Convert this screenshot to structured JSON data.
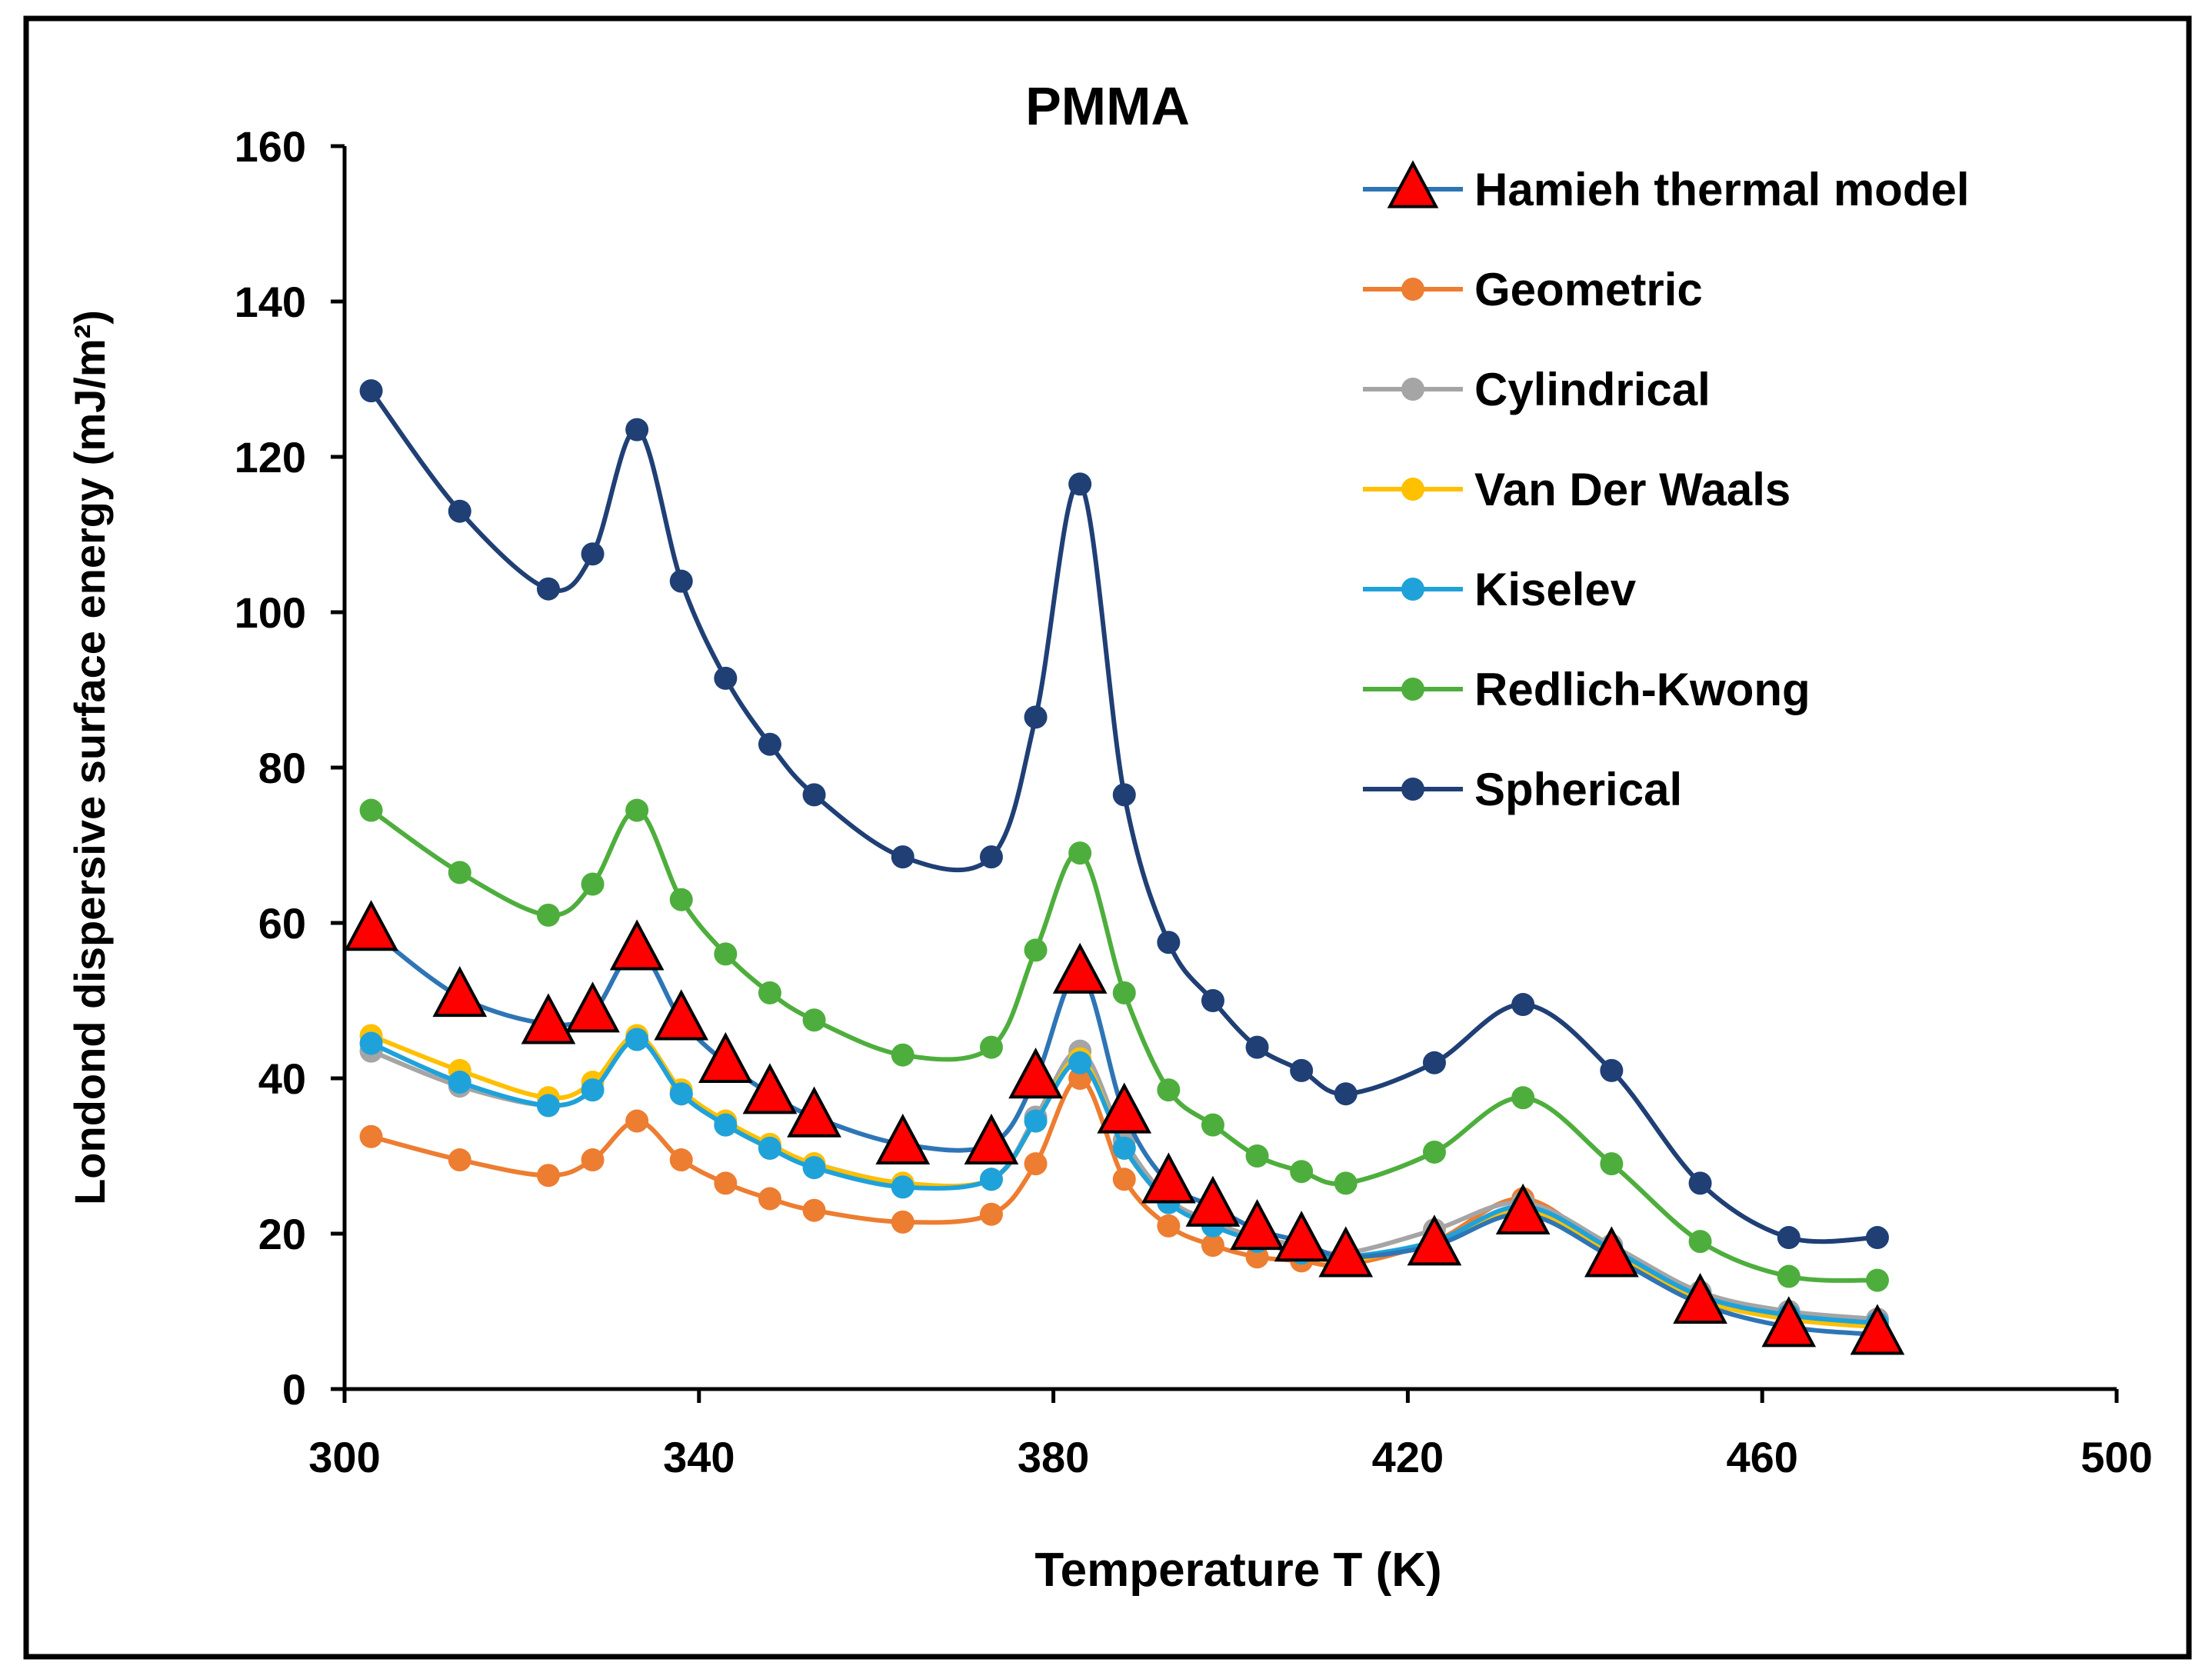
{
  "chart_data": {
    "type": "line",
    "title": "PMMA",
    "xlabel": "Temperature T (K)",
    "ylabel": "Londond dispersive surface energy (mJ/m²)",
    "xlim": [
      300,
      500
    ],
    "ylim": [
      0,
      160
    ],
    "xticks": [
      300,
      340,
      380,
      420,
      460,
      500
    ],
    "yticks": [
      0,
      20,
      40,
      60,
      80,
      100,
      120,
      140,
      160
    ],
    "grid": false,
    "legend_position": "top-right",
    "series": [
      {
        "name": "Hamieh thermal model",
        "color": "#2E75B6",
        "marker": "triangle",
        "marker_color": "#FF0000",
        "x": [
          303,
          313,
          323,
          328,
          333,
          338,
          343,
          348,
          353,
          363,
          373,
          378,
          383,
          388,
          393,
          398,
          403,
          408,
          413,
          423,
          433,
          443,
          453,
          463,
          473
        ],
        "y": [
          59,
          50.5,
          47,
          48.5,
          56.5,
          47.5,
          42,
          38,
          35,
          31.5,
          31.5,
          40,
          53.5,
          35.5,
          26.5,
          23.5,
          20.5,
          19,
          17,
          18.5,
          22.5,
          17,
          11,
          8,
          7
        ]
      },
      {
        "name": "Geometric",
        "color": "#ED7D31",
        "marker": "circle",
        "x": [
          303,
          313,
          323,
          328,
          333,
          338,
          343,
          348,
          353,
          363,
          373,
          378,
          383,
          388,
          393,
          398,
          403,
          408,
          413,
          423,
          433,
          443,
          453,
          463,
          473
        ],
        "y": [
          32.5,
          29.5,
          27.5,
          29.5,
          34.5,
          29.5,
          26.5,
          24.5,
          23,
          21.5,
          22.5,
          29,
          40,
          27,
          21,
          18.5,
          17,
          16.5,
          16,
          19,
          24.5,
          17.5,
          11.5,
          9,
          8
        ]
      },
      {
        "name": "Cylindrical",
        "color": "#A5A5A5",
        "marker": "circle",
        "x": [
          303,
          313,
          323,
          328,
          333,
          338,
          343,
          348,
          353,
          363,
          373,
          378,
          383,
          388,
          393,
          398,
          403,
          408,
          413,
          423,
          433,
          443,
          453,
          463,
          473
        ],
        "y": [
          43.5,
          39,
          36.5,
          38.5,
          45,
          38,
          34,
          31,
          29,
          26.5,
          27,
          35,
          43.5,
          32,
          24.5,
          21.5,
          19.5,
          18.5,
          17.5,
          20.5,
          24,
          18.5,
          12.5,
          10,
          9
        ]
      },
      {
        "name": "Van Der Waals",
        "color": "#FFC000",
        "marker": "circle",
        "x": [
          303,
          313,
          323,
          328,
          333,
          338,
          343,
          348,
          353,
          363,
          373,
          378,
          383,
          388,
          393,
          398,
          403,
          408,
          413,
          423,
          433,
          443,
          453,
          463,
          473
        ],
        "y": [
          45.5,
          41,
          37.5,
          39.5,
          45.5,
          38.5,
          34.5,
          31.5,
          29,
          26.5,
          27,
          34.5,
          42.5,
          31,
          24,
          21,
          19,
          17.5,
          16.5,
          19,
          23,
          17.5,
          11.5,
          9,
          8
        ]
      },
      {
        "name": "Kiselev",
        "color": "#1FA2DA",
        "marker": "circle",
        "x": [
          303,
          313,
          323,
          328,
          333,
          338,
          343,
          348,
          353,
          363,
          373,
          378,
          383,
          388,
          393,
          398,
          403,
          408,
          413,
          423,
          433,
          443,
          453,
          463,
          473
        ],
        "y": [
          44.5,
          39.5,
          36.5,
          38.5,
          45,
          38,
          34,
          31,
          28.5,
          26,
          27,
          34.5,
          42,
          31,
          24,
          21,
          19,
          17.5,
          17,
          19,
          23.5,
          18,
          12,
          9.5,
          8.5
        ]
      },
      {
        "name": "Redlich-Kwong",
        "color": "#4EAE3D",
        "marker": "circle",
        "x": [
          303,
          313,
          323,
          328,
          333,
          338,
          343,
          348,
          353,
          363,
          373,
          378,
          383,
          388,
          393,
          398,
          403,
          408,
          413,
          423,
          433,
          443,
          453,
          463,
          473
        ],
        "y": [
          74.5,
          66.5,
          61,
          65,
          74.5,
          63,
          56,
          51,
          47.5,
          43,
          44,
          56.5,
          69,
          51,
          38.5,
          34,
          30,
          28,
          26.5,
          30.5,
          37.5,
          29,
          19,
          14.5,
          14
        ]
      },
      {
        "name": "Spherical",
        "color": "#1F3F75",
        "marker": "circle",
        "x": [
          303,
          313,
          323,
          328,
          333,
          338,
          343,
          348,
          353,
          363,
          373,
          378,
          383,
          388,
          393,
          398,
          403,
          408,
          413,
          423,
          433,
          443,
          453,
          463,
          473
        ],
        "y": [
          128.5,
          113,
          103,
          107.5,
          123.5,
          104,
          91.5,
          83,
          76.5,
          68.5,
          68.5,
          86.5,
          116.5,
          76.5,
          57.5,
          50,
          44,
          41,
          38,
          42,
          49.5,
          41,
          26.5,
          19.5,
          19.5
        ]
      }
    ]
  }
}
